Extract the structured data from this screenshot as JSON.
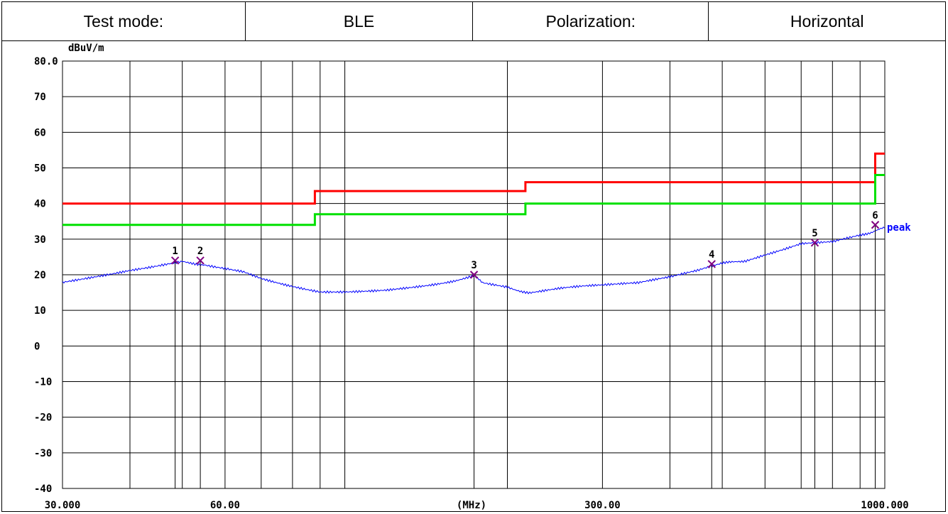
{
  "header": {
    "test_mode_label": "Test mode:",
    "test_mode_value": "BLE",
    "polarization_label": "Polarization:",
    "polarization_value": "Horizontal"
  },
  "chart_data": {
    "type": "line",
    "title": "",
    "ylabel": "dBuV/m",
    "xlabel": "(MHz)",
    "x_scale": "log",
    "xlim": [
      30,
      1000
    ],
    "ylim": [
      -40,
      80
    ],
    "y_ticks": [
      80,
      70,
      60,
      50,
      40,
      30,
      20,
      10,
      0,
      -10,
      -20,
      -30,
      -40
    ],
    "y_tick_labels": [
      "80.0",
      "70",
      "60",
      "50",
      "40",
      "30",
      "20",
      "10",
      "0",
      "-10",
      "-20",
      "-30",
      "-40"
    ],
    "x_tick_labels": [
      {
        "value": 30,
        "label": "30.000"
      },
      {
        "value": 60,
        "label": "60.00"
      },
      {
        "value": 300,
        "label": "300.00"
      },
      {
        "value": 1000,
        "label": "1000.000"
      }
    ],
    "grid": true,
    "series": [
      {
        "name": "",
        "color": "#ff0000",
        "step": true,
        "values": [
          [
            30,
            40
          ],
          [
            88,
            40
          ],
          [
            88,
            43.5
          ],
          [
            216,
            43.5
          ],
          [
            216,
            46
          ],
          [
            960,
            46
          ],
          [
            960,
            54
          ],
          [
            1000,
            54
          ]
        ]
      },
      {
        "name": "",
        "color": "#00e000",
        "step": true,
        "values": [
          [
            30,
            34
          ],
          [
            88,
            34
          ],
          [
            88,
            37
          ],
          [
            216,
            37
          ],
          [
            216,
            40
          ],
          [
            960,
            40
          ],
          [
            960,
            48
          ],
          [
            1000,
            48
          ]
        ]
      },
      {
        "name": "peak",
        "color": "#0000ff",
        "values": [
          [
            30,
            18
          ],
          [
            35,
            19.5
          ],
          [
            40,
            21.5
          ],
          [
            45,
            22.5
          ],
          [
            50,
            23.5
          ],
          [
            55,
            23
          ],
          [
            60,
            22
          ],
          [
            65,
            21
          ],
          [
            70,
            19
          ],
          [
            80,
            17
          ],
          [
            90,
            15.3
          ],
          [
            100,
            15
          ],
          [
            120,
            16
          ],
          [
            140,
            17
          ],
          [
            160,
            18.5
          ],
          [
            173,
            19.5
          ],
          [
            180,
            18
          ],
          [
            200,
            16.5
          ],
          [
            220,
            15
          ],
          [
            250,
            16
          ],
          [
            300,
            17
          ],
          [
            350,
            17.5
          ],
          [
            400,
            19.5
          ],
          [
            450,
            21
          ],
          [
            500,
            23
          ],
          [
            550,
            24
          ],
          [
            600,
            25.5
          ],
          [
            650,
            27
          ],
          [
            700,
            28.5
          ],
          [
            800,
            29.5
          ],
          [
            900,
            31
          ],
          [
            960,
            32.5
          ],
          [
            1000,
            33
          ]
        ]
      }
    ],
    "markers": [
      {
        "label": "1",
        "x": 48.5,
        "y": 24
      },
      {
        "label": "2",
        "x": 54.0,
        "y": 24
      },
      {
        "label": "3",
        "x": 173.5,
        "y": 20
      },
      {
        "label": "4",
        "x": 478.0,
        "y": 23
      },
      {
        "label": "5",
        "x": 742.0,
        "y": 29
      },
      {
        "label": "6",
        "x": 960.0,
        "y": 34
      }
    ]
  }
}
